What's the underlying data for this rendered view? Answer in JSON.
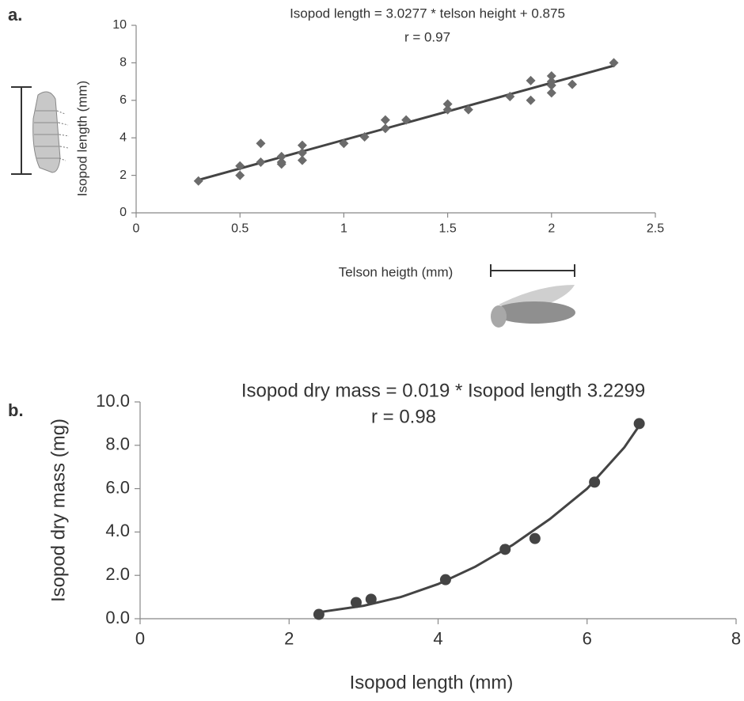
{
  "chart_data": [
    {
      "type": "scatter",
      "panel": "a.",
      "title": "Isopod length = 3.0277 * telson height + 0.875",
      "subtitle": "r = 0.97",
      "x_label": "Telson heigth (mm)",
      "y_label": "Isopod length (mm)",
      "xlim": [
        0,
        2.5
      ],
      "xticks": [
        0,
        0.5,
        1,
        1.5,
        2,
        2.5
      ],
      "ylim": [
        0,
        10
      ],
      "yticks": [
        0,
        2,
        4,
        6,
        8,
        10
      ],
      "marker": "diamond",
      "color": "#6b6b6b",
      "line_color": "#444444",
      "x": [
        0.3,
        0.5,
        0.5,
        0.6,
        0.6,
        0.7,
        0.7,
        0.7,
        0.8,
        0.8,
        0.8,
        1.0,
        1.1,
        1.2,
        1.2,
        1.3,
        1.5,
        1.5,
        1.6,
        1.8,
        1.9,
        1.9,
        2.0,
        2.0,
        2.0,
        2.0,
        2.1,
        2.3
      ],
      "values": [
        1.7,
        2.5,
        2.0,
        3.7,
        2.7,
        3.0,
        2.6,
        2.7,
        3.6,
        3.2,
        2.8,
        3.7,
        4.05,
        4.95,
        4.5,
        4.95,
        5.8,
        5.5,
        5.5,
        6.2,
        7.05,
        6.0,
        7.3,
        7.0,
        6.8,
        6.4,
        6.85,
        8.0
      ],
      "trendline": {
        "x": [
          0.3,
          2.3
        ],
        "values": [
          1.75,
          7.85
        ]
      }
    },
    {
      "type": "scatter",
      "panel": "b.",
      "title": "Isopod dry mass = 0.019 * Isopod length 3.2299",
      "subtitle": "r = 0.98",
      "x_label": "Isopod length (mm)",
      "y_label": "Isopod dry mass (mg)",
      "xlim": [
        0,
        8
      ],
      "xticks": [
        0,
        2,
        4,
        6,
        8
      ],
      "ylim": [
        0,
        10
      ],
      "yticks": [
        {
          "value": 0,
          "label": "0.0"
        },
        {
          "value": 2,
          "label": "2.0"
        },
        {
          "value": 4,
          "label": "4.0"
        },
        {
          "value": 6,
          "label": "6.0"
        },
        {
          "value": 8,
          "label": "8.0"
        },
        {
          "value": 10,
          "label": "10.0"
        }
      ],
      "marker": "circle",
      "color": "#444444",
      "line_color": "#444444",
      "x": [
        2.4,
        2.9,
        3.1,
        4.1,
        4.9,
        5.3,
        6.1,
        6.7
      ],
      "values": [
        0.2,
        0.75,
        0.9,
        1.8,
        3.2,
        3.7,
        6.3,
        9.0
      ],
      "trendline": {
        "x": [
          2.4,
          3.0,
          3.5,
          4.0,
          4.5,
          5.0,
          5.5,
          6.0,
          6.5,
          6.7
        ],
        "values": [
          0.3,
          0.6,
          1.0,
          1.6,
          2.4,
          3.4,
          4.6,
          6.0,
          7.9,
          8.9
        ]
      }
    }
  ]
}
